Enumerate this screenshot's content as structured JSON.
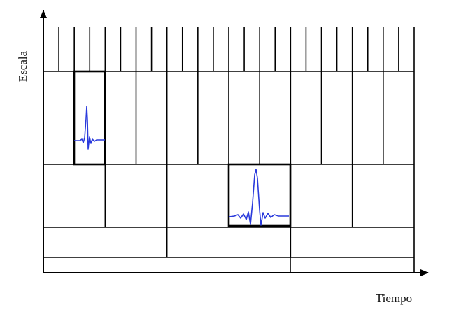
{
  "axes": {
    "y_label": "Escala",
    "x_label": "Tiempo"
  }
}
